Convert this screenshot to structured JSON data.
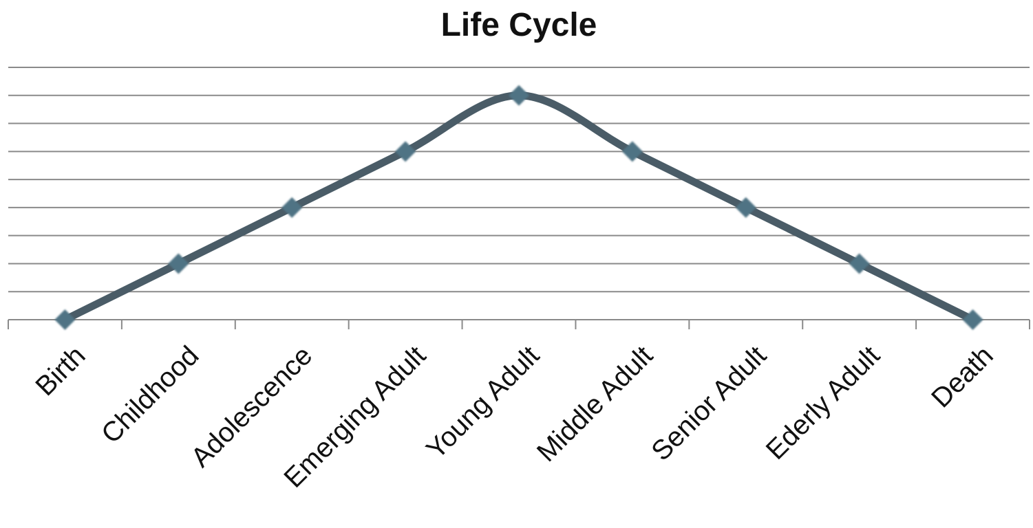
{
  "chart_data": {
    "type": "line",
    "title": "Life Cycle",
    "categories": [
      "Birth",
      "Childhood",
      "Adolescence",
      "Emerging Adult",
      "Young Adult",
      "Middle Adult",
      "Senior Adult",
      "Ederly Adult",
      "Death"
    ],
    "series": [
      {
        "color": "#4a5c67",
        "values": [
          0,
          2,
          4,
          6,
          8,
          6,
          4,
          2,
          0
        ]
      }
    ],
    "marker_color": "#4f7384",
    "ylim": [
      0,
      9
    ],
    "yticks": [
      0,
      1,
      2,
      3,
      4,
      5,
      6,
      7,
      8,
      9
    ],
    "grid": true,
    "smooth": true
  }
}
